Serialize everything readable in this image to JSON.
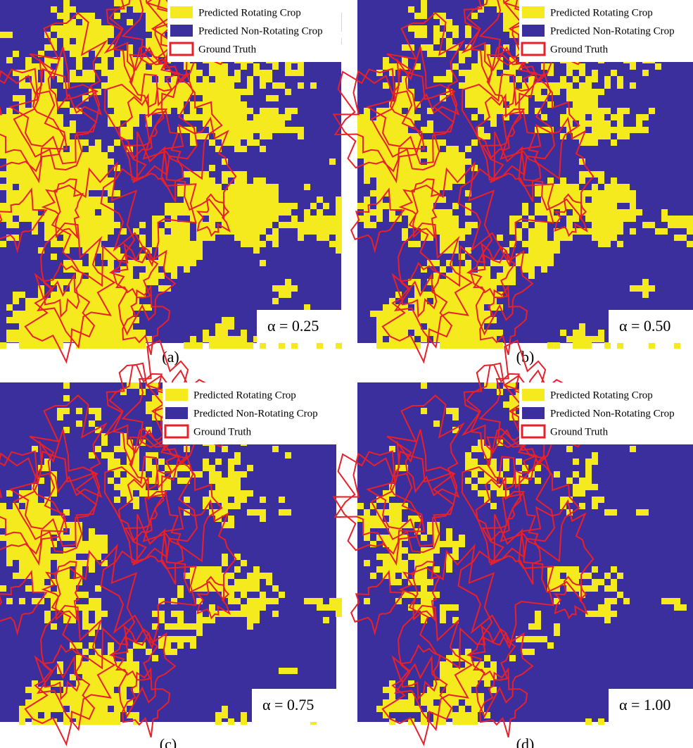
{
  "panels": [
    {
      "legend": [
        "Predicted Rotating Crop",
        "Predicted Non-Rotating Crop",
        "Ground Truth"
      ],
      "label": "α = 0.25",
      "caption": "(a)"
    },
    {
      "legend": [
        "Predicted Rotating Crop",
        "Predicted Non-Rotating Crop",
        "Ground Truth"
      ],
      "label": "α = 0.50",
      "caption": "(b)"
    },
    {
      "legend": [
        "Predicted Rotating Crop",
        "Predicted Non-Rotating Crop",
        "Ground Truth"
      ],
      "label": "α = 0.75",
      "caption": "(c)"
    },
    {
      "legend": [
        "Predicted Rotating Crop",
        "Predicted Non-Rotating Crop",
        "Ground Truth"
      ],
      "label": "α = 1.00",
      "caption": "(d)"
    }
  ]
}
